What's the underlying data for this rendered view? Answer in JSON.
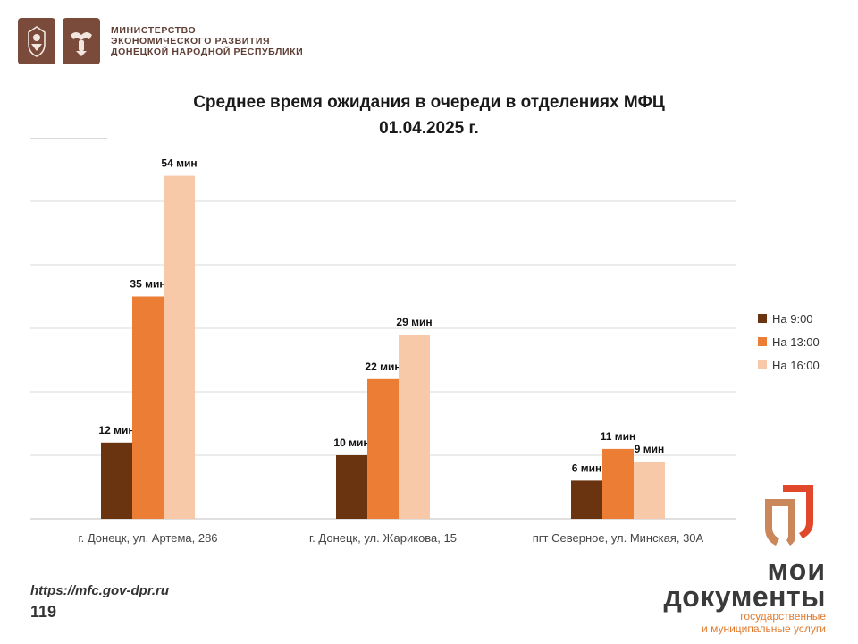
{
  "header": {
    "emblem_left": "dnr-coat-of-arms-icon",
    "emblem_right": "dnr-eagle-emblem-icon",
    "ministry_line1": "МИНИСТЕРСТВО",
    "ministry_line2": "ЭКОНОМИЧЕСКОГО РАЗВИТИЯ",
    "ministry_line3": "ДОНЕЦКОЙ НАРОДНОЙ РЕСПУБЛИКИ"
  },
  "chart_data": {
    "type": "bar",
    "title": "Среднее время ожидания в очереди в отделениях МФЦ",
    "subtitle": "01.04.2025 г.",
    "categories": [
      "г. Донецк, ул. Артема, 286",
      "г. Донецк, ул. Жарикова, 15",
      "пгт Северное, ул. Минская, 30А"
    ],
    "series": [
      {
        "name": "На 9:00",
        "values": [
          12,
          10,
          6
        ],
        "labels": [
          "12 мин",
          "10 мин",
          "6 мин"
        ],
        "color": "#6b3410"
      },
      {
        "name": "На 13:00",
        "values": [
          35,
          22,
          11
        ],
        "labels": [
          "35 мин",
          "22 мин",
          "11 мин"
        ],
        "color": "#eb7d35"
      },
      {
        "name": "На 16:00",
        "values": [
          54,
          29,
          9
        ],
        "labels": [
          "54 мин",
          "29 мин",
          "9 мин"
        ],
        "color": "#f7c9a8"
      }
    ],
    "ylim": [
      0,
      60
    ],
    "gridlines": [
      10,
      20,
      30,
      40,
      50
    ],
    "grid": true,
    "legend_position": "right"
  },
  "footer": {
    "url": "https://mfc.gov-dpr.ru",
    "page_number": "119",
    "brand_line1": "мои",
    "brand_line2": "документы",
    "brand_sub1": "государственные",
    "brand_sub2": "и муниципальные услуги",
    "brand_icon": "moi-dokumenty-logo-icon"
  }
}
